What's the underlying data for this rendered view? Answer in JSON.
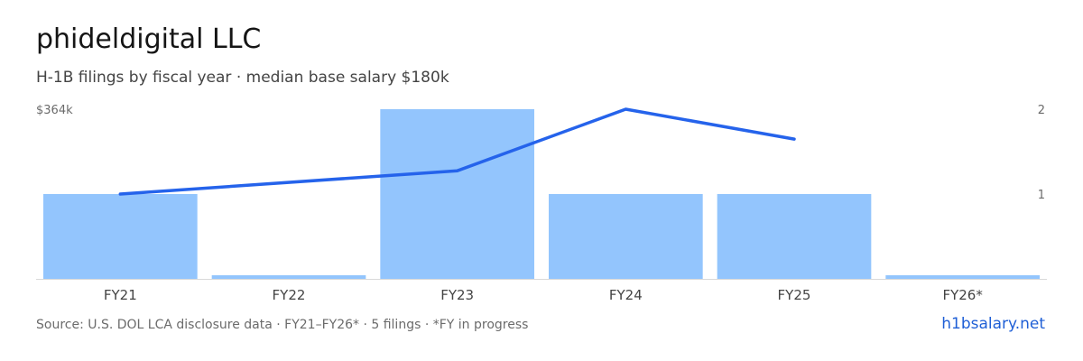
{
  "header": {
    "title": "phideldigital LLC",
    "subtitle": "H-1B filings by fiscal year · median base salary $180k"
  },
  "footer": {
    "source": "Source: U.S. DOL LCA disclosure data · FY21–FY26* · 5 filings · *FY in progress",
    "brand": "h1bsalary.net"
  },
  "colors": {
    "bar": "#93c5fd",
    "line": "#2563eb",
    "axis_text": "#6b6b6b",
    "baseline": "#d9d9d9",
    "brand": "#1f5fd6"
  },
  "chart_data": {
    "type": "bar",
    "categories": [
      "FY21",
      "FY22",
      "FY23",
      "FY24",
      "FY25",
      "FY26*"
    ],
    "series": [
      {
        "type": "bar",
        "axis": "right",
        "values": [
          1,
          0,
          2,
          1,
          1,
          0
        ]
      },
      {
        "type": "line",
        "axis": "left",
        "values": [
          182000,
          null,
          232000,
          364000,
          300000,
          null
        ]
      }
    ],
    "left_axis": {
      "max_label": "$364k",
      "max": 364000
    },
    "right_axis": {
      "ticks": [
        "2",
        "1"
      ],
      "max": 2
    }
  }
}
